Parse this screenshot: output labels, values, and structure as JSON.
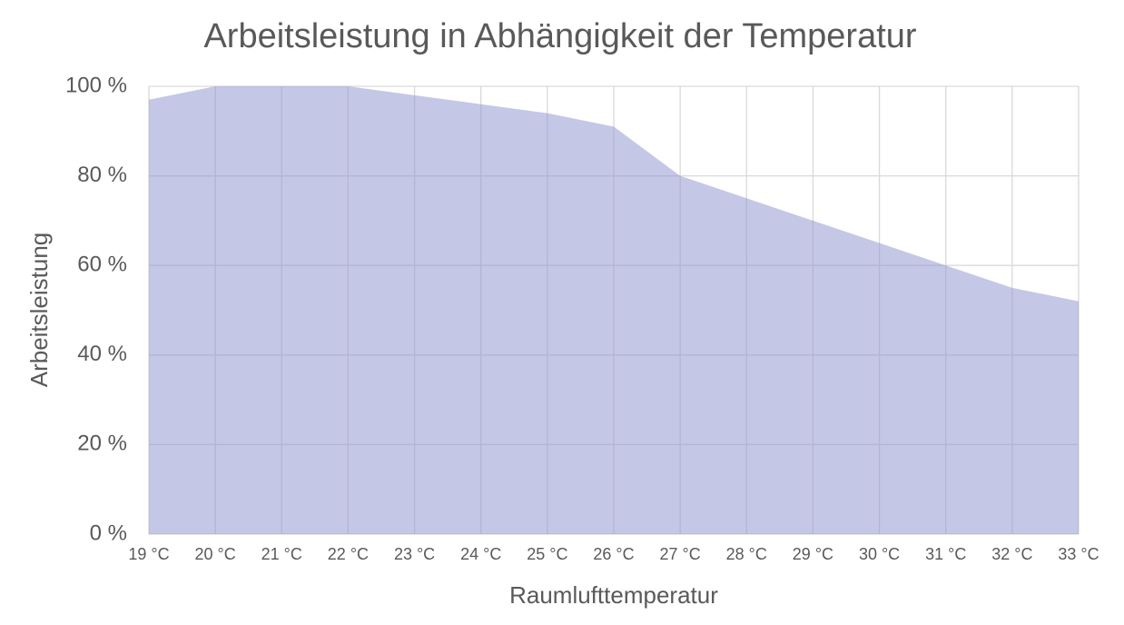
{
  "chart_data": {
    "type": "area",
    "title": "Arbeitsleistung in Abhängigkeit der Temperatur",
    "x_label": "Raumlufttemperatur",
    "y_label": "Arbeitsleistung",
    "categories": [
      "19 °C",
      "20 °C",
      "21 °C",
      "22 °C",
      "23 °C",
      "24 °C",
      "25 °C",
      "26 °C",
      "27 °C",
      "28 °C",
      "29 °C",
      "30 °C",
      "31 °C",
      "32 °C",
      "33 °C"
    ],
    "values": [
      97,
      100,
      100,
      100,
      98,
      96,
      94,
      91,
      80,
      75,
      70,
      65,
      60,
      55,
      52
    ],
    "color": "#8f93cf",
    "ylim": [
      0,
      100
    ],
    "yticks": [
      {
        "value": 0,
        "label": "0 %"
      },
      {
        "value": 20,
        "label": "20 %"
      },
      {
        "value": 40,
        "label": "40 %"
      },
      {
        "value": 60,
        "label": "60 %"
      },
      {
        "value": 80,
        "label": "80 %"
      },
      {
        "value": 100,
        "label": "100 %"
      }
    ],
    "grid": true
  }
}
